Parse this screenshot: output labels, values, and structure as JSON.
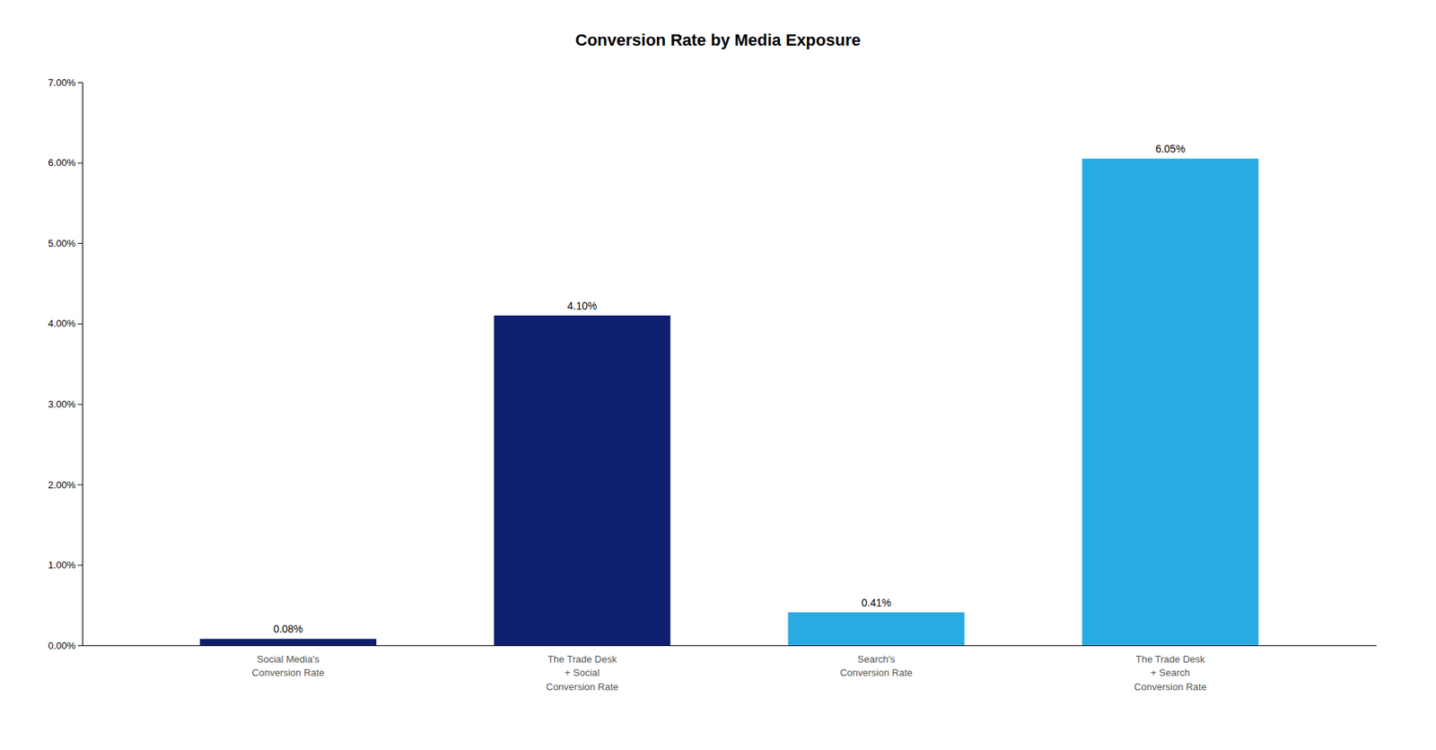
{
  "chart_data": {
    "type": "bar",
    "title": "Conversion Rate by Media Exposure",
    "categories": [
      "Social Media's\nConversion Rate",
      "The Trade Desk\n+ Social\nConversion Rate",
      "Search's\nConversion Rate",
      "The Trade Desk\n+ Search\nConversion Rate"
    ],
    "values": [
      0.0008,
      0.041,
      0.0041,
      0.0605
    ],
    "value_labels": [
      "0.08%",
      "4.10%",
      "0.41%",
      "6.05%"
    ],
    "colors": [
      "#0d1f6e",
      "#0d1f6e",
      "#29abe2",
      "#29abe2"
    ],
    "ylim": [
      0,
      0.07
    ],
    "yticks": [
      {
        "value": 0.0,
        "label": "0.00%"
      },
      {
        "value": 0.01,
        "label": "1.00%"
      },
      {
        "value": 0.02,
        "label": "2.00%"
      },
      {
        "value": 0.03,
        "label": "3.00%"
      },
      {
        "value": 0.04,
        "label": "4.00%"
      },
      {
        "value": 0.05,
        "label": "5.00%"
      },
      {
        "value": 0.06,
        "label": "6.00%"
      },
      {
        "value": 0.07,
        "label": "7.00%"
      }
    ],
    "data_labels": true,
    "grid": false
  }
}
